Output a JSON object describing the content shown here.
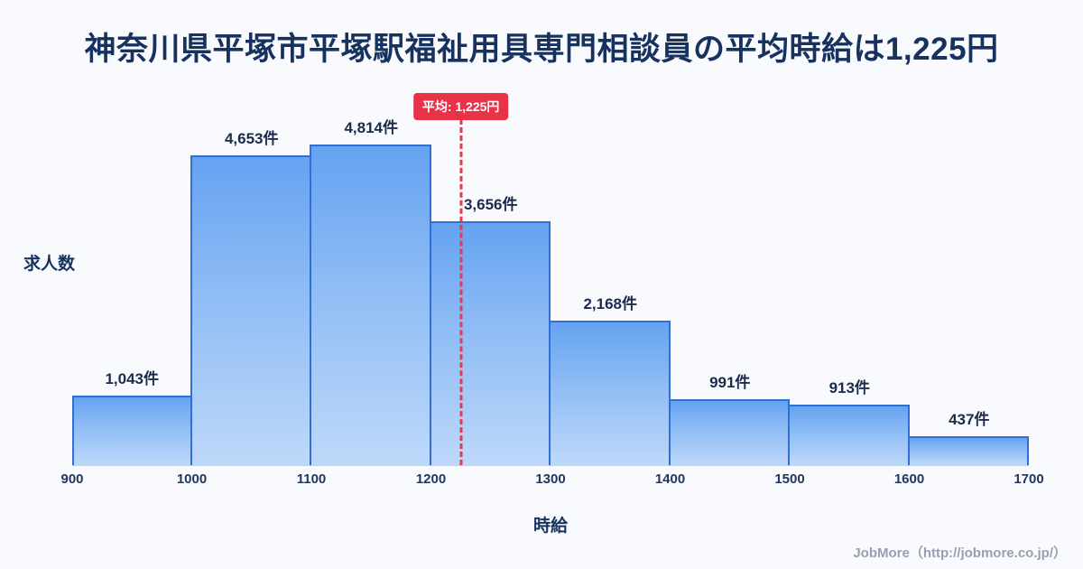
{
  "title": "神奈川県平塚市平塚駅福祉用具専門相談員の平均時給は1,225円",
  "chart_data": {
    "type": "bar",
    "title": "神奈川県平塚市平塚駅福祉用具専門相談員の平均時給は1,225円",
    "xlabel": "時給",
    "ylabel": "求人数",
    "x_range": [
      900,
      1700
    ],
    "bin_edges": [
      900,
      1000,
      1100,
      1200,
      1300,
      1400,
      1500,
      1600,
      1700
    ],
    "categories": [
      "900-1000",
      "1000-1100",
      "1100-1200",
      "1200-1300",
      "1300-1400",
      "1400-1500",
      "1500-1600",
      "1600-1700"
    ],
    "values": [
      1043,
      4653,
      4814,
      3656,
      2168,
      991,
      913,
      437
    ],
    "value_labels": [
      "1,043件",
      "4,653件",
      "4,814件",
      "3,656件",
      "2,168件",
      "991件",
      "913件",
      "437件"
    ],
    "x_tick_labels": [
      "900",
      "1000",
      "1100",
      "1200",
      "1300",
      "1400",
      "1500",
      "1600",
      "1700"
    ],
    "mean": 1225,
    "mean_label": "平均: 1,225円",
    "grid": false,
    "legend": "none",
    "colors": {
      "bar_top": "#65a2f1",
      "bar_bottom": "#bed8fa",
      "bar_border": "#2f6fd6",
      "mean_line": "#e73a4e",
      "badge_background": "#e83248",
      "badge_text": "#ffffff",
      "title_text": "#17325e",
      "background": "#f8fafd"
    }
  },
  "footer": {
    "credit": "JobMore（http://jobmore.co.jp/）"
  }
}
